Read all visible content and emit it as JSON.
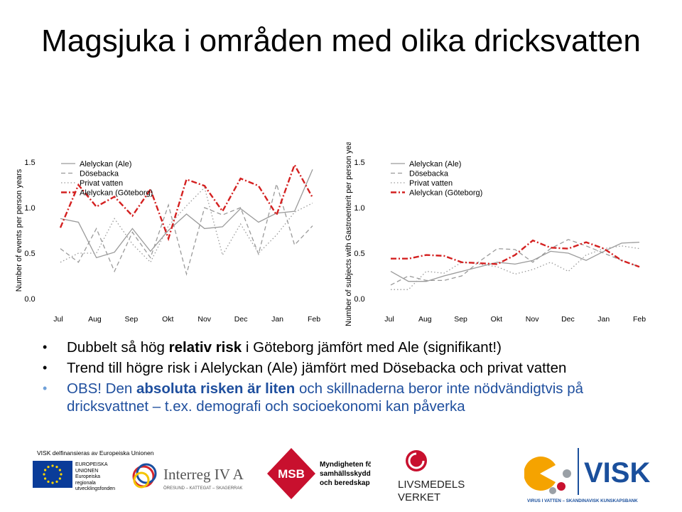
{
  "slide": {
    "title": "Magsjuka i områden med olika dricksvatten"
  },
  "chart_data": [
    {
      "type": "line",
      "ylabel": "Number of events per person years",
      "xlabel": "",
      "title": "",
      "categories": [
        "Jul",
        "Aug",
        "Sep",
        "Okt",
        "Nov",
        "Dec",
        "Jan",
        "Feb"
      ],
      "ylim": [
        0.0,
        1.5
      ],
      "yticks": [
        "0.0",
        "0.5",
        "1.0",
        "1.5"
      ],
      "legend_position": "top-left",
      "x": [
        0,
        0.5,
        1,
        1.5,
        2,
        2.5,
        3,
        3.5,
        4,
        4.5,
        5,
        5.5,
        6,
        6.5,
        7
      ],
      "series": [
        {
          "name": "Alelyckan (Ale)",
          "style": "solid",
          "color": "#9a9a9a",
          "values": [
            0.88,
            0.84,
            0.45,
            0.51,
            0.77,
            0.52,
            0.75,
            0.93,
            0.77,
            0.79,
            0.99,
            0.84,
            0.94,
            0.96,
            1.42
          ]
        },
        {
          "name": "Dösebacka",
          "style": "dashed",
          "color": "#9a9a9a",
          "values": [
            0.55,
            0.4,
            0.77,
            0.3,
            0.73,
            0.45,
            1.03,
            0.27,
            1.0,
            0.92,
            1.0,
            0.49,
            1.26,
            0.59,
            0.8
          ]
        },
        {
          "name": "Privat vatten",
          "style": "dotted",
          "color": "#9a9a9a",
          "values": [
            0.4,
            0.5,
            0.5,
            0.88,
            0.6,
            0.4,
            0.8,
            1.02,
            1.22,
            0.48,
            0.82,
            0.5,
            0.7,
            0.95,
            1.05
          ]
        },
        {
          "name": "Alelyckan (Göteborg)",
          "style": "dashdot",
          "color": "#d42020",
          "values": [
            0.78,
            1.25,
            1.01,
            1.12,
            0.91,
            1.2,
            0.66,
            1.31,
            1.24,
            0.96,
            1.32,
            1.24,
            0.92,
            1.47,
            1.11
          ]
        }
      ]
    },
    {
      "type": "line",
      "ylabel": "Number of subjects with Gastroenterit per person years",
      "xlabel": "",
      "title": "",
      "categories": [
        "Jul",
        "Aug",
        "Sep",
        "Okt",
        "Nov",
        "Dec",
        "Jan",
        "Feb"
      ],
      "ylim": [
        0.0,
        1.5
      ],
      "yticks": [
        "0.0",
        "0.5",
        "1.0",
        "1.5"
      ],
      "legend_position": "top-left",
      "x": [
        0,
        0.5,
        1,
        1.5,
        2,
        2.5,
        3,
        3.5,
        4,
        4.5,
        5,
        5.5,
        6,
        6.5,
        7
      ],
      "series": [
        {
          "name": "Alelyckan (Ale)",
          "style": "solid",
          "color": "#9a9a9a",
          "values": [
            0.3,
            0.19,
            0.19,
            0.25,
            0.3,
            0.35,
            0.4,
            0.38,
            0.42,
            0.52,
            0.5,
            0.42,
            0.52,
            0.61,
            0.62
          ]
        },
        {
          "name": "Dösebacka",
          "style": "dashed",
          "color": "#9a9a9a",
          "values": [
            0.15,
            0.25,
            0.2,
            0.2,
            0.25,
            0.41,
            0.55,
            0.54,
            0.4,
            0.55,
            0.65,
            0.58,
            0.5,
            0.42,
            0.35
          ]
        },
        {
          "name": "Privat vatten",
          "style": "dotted",
          "color": "#9a9a9a",
          "values": [
            0.1,
            0.1,
            0.3,
            0.28,
            0.4,
            0.38,
            0.35,
            0.27,
            0.32,
            0.4,
            0.3,
            0.48,
            0.55,
            0.58,
            0.55
          ]
        },
        {
          "name": "Alelyckan (Göteborg)",
          "style": "dashdot",
          "color": "#d42020",
          "values": [
            0.44,
            0.44,
            0.48,
            0.47,
            0.4,
            0.39,
            0.38,
            0.48,
            0.64,
            0.56,
            0.55,
            0.62,
            0.55,
            0.42,
            0.35
          ]
        }
      ]
    }
  ],
  "bullets": [
    {
      "before": "Dubbelt så hög ",
      "bold": "relativ risk",
      "after": " i Göteborg jämfört med Ale (signifikant!)"
    },
    {
      "before": "Trend till högre risk i Alelyckan (Ale) jämfört med Dösebacka och privat vatten",
      "bold": "",
      "after": ""
    },
    {
      "before": "OBS! Den ",
      "bold": "absoluta risken är liten",
      "after": " och skillnaderna beror inte nödvändigtvis på dricksvattnet – t.ex. demografi och socioekonomi kan påverka"
    }
  ],
  "bullet_marker": "•",
  "footer": {
    "funding_text": "VISK delfinansieras av Europeiska Unionen",
    "eu_text": "EUROPEISKA UNIONEN Europeiska regionala utvecklingsfonden",
    "interreg_title": "Interreg IV A",
    "interreg_sub": "ÖRESUND – KATTEGAT – SKAGERRAK",
    "msb_logo": "MSB",
    "msb_text_1": "Myndigheten för",
    "msb_text_2": "samhällsskydd",
    "msb_text_3": "och beredskap",
    "livs_text_1": "LIVSMEDELS",
    "livs_text_2": "VERKET",
    "visk_logo": "VISK",
    "visk_sub": "VIRUS I VATTEN – SKANDINAVISK KUNSKAPSBANK"
  },
  "colors": {
    "accent_red": "#d42020",
    "series_gray": "#9a9a9a",
    "obs_blue": "#1f4f9e",
    "msb_red": "#c8102e",
    "visk_blue": "#1a4f9c",
    "visk_orange": "#f5a300"
  }
}
